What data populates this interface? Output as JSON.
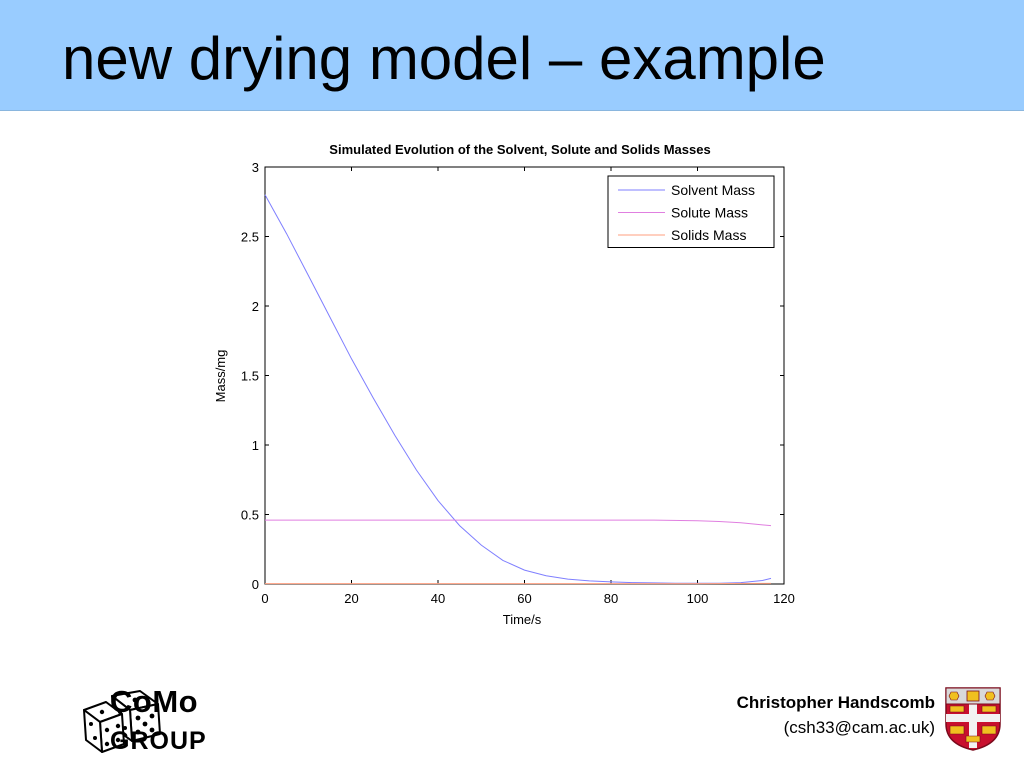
{
  "slide": {
    "title": "new drying model – example"
  },
  "footer": {
    "logo_line1": "CoMo",
    "logo_line2": "GROUP",
    "author": "Christopher Handscomb",
    "email": "(csh33@cam.ac.uk)"
  },
  "colors": {
    "title_band": "#99ccff",
    "solvent": "#7f7fff",
    "solute": "#e07fe0",
    "solids": "#ff9f7f"
  },
  "chart_data": {
    "type": "line",
    "title": "Simulated Evolution of the Solvent, Solute and Solids Masses",
    "xlabel": "Time/s",
    "ylabel": "Mass/mg",
    "xlim": [
      0,
      120
    ],
    "ylim": [
      0,
      3
    ],
    "xticks": [
      0,
      20,
      40,
      60,
      80,
      100,
      120
    ],
    "yticks": [
      0,
      0.5,
      1,
      1.5,
      2,
      2.5,
      3
    ],
    "xtick_labels": [
      "0",
      "20",
      "40",
      "60",
      "80",
      "100",
      "120"
    ],
    "ytick_labels": [
      "0",
      "0.5",
      "1",
      "1.5",
      "2",
      "2.5",
      "3"
    ],
    "grid": false,
    "legend_position": "top-right",
    "series": [
      {
        "name": "Solvent Mass",
        "color": "#7f7fff",
        "x": [
          0,
          5,
          10,
          15,
          20,
          25,
          30,
          35,
          40,
          45,
          50,
          55,
          60,
          65,
          70,
          75,
          80,
          85,
          90,
          95,
          100,
          105,
          110,
          115,
          117
        ],
        "y": [
          2.8,
          2.52,
          2.22,
          1.92,
          1.62,
          1.34,
          1.07,
          0.82,
          0.6,
          0.42,
          0.28,
          0.17,
          0.1,
          0.06,
          0.035,
          0.022,
          0.015,
          0.01,
          0.008,
          0.006,
          0.005,
          0.005,
          0.01,
          0.025,
          0.04
        ]
      },
      {
        "name": "Solute Mass",
        "color": "#e07fe0",
        "x": [
          0,
          20,
          40,
          60,
          80,
          90,
          100,
          105,
          110,
          115,
          117
        ],
        "y": [
          0.46,
          0.46,
          0.46,
          0.46,
          0.46,
          0.46,
          0.455,
          0.45,
          0.44,
          0.425,
          0.42
        ]
      },
      {
        "name": "Solids Mass",
        "color": "#ff9f7f",
        "x": [
          0,
          20,
          40,
          60,
          80,
          100,
          117
        ],
        "y": [
          0.003,
          0.003,
          0.003,
          0.003,
          0.003,
          0.003,
          0.004
        ]
      }
    ]
  }
}
